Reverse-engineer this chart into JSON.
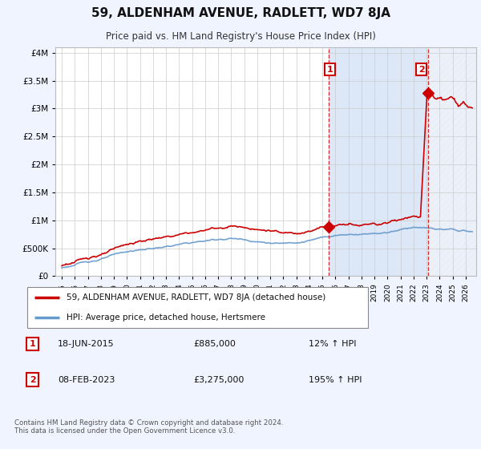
{
  "title": "59, ALDENHAM AVENUE, RADLETT, WD7 8JA",
  "subtitle": "Price paid vs. HM Land Registry's House Price Index (HPI)",
  "background_color": "#f0f4ff",
  "plot_background": "#ffffff",
  "shaded_region_color": "#dce8f8",
  "ylim": [
    0,
    4000000
  ],
  "xlim_start": 1994.5,
  "xlim_end": 2026.8,
  "hpi_line_color": "#6699cc",
  "price_line_color": "#cc0000",
  "marker1_date": 2015.46,
  "marker1_price": 885000,
  "marker2_date": 2023.1,
  "marker2_price": 3275000,
  "vline1_date": 2015.46,
  "vline2_date": 2023.1,
  "legend_label1": "59, ALDENHAM AVENUE, RADLETT, WD7 8JA (detached house)",
  "legend_label2": "HPI: Average price, detached house, Hertsmere",
  "annotation1_num": "1",
  "annotation1_date": "18-JUN-2015",
  "annotation1_price": "£885,000",
  "annotation1_hpi": "12% ↑ HPI",
  "annotation2_num": "2",
  "annotation2_date": "08-FEB-2023",
  "annotation2_price": "£3,275,000",
  "annotation2_hpi": "195% ↑ HPI",
  "footer": "Contains HM Land Registry data © Crown copyright and database right 2024.\nThis data is licensed under the Open Government Licence v3.0."
}
